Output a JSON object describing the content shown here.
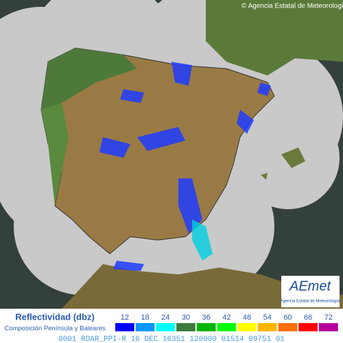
{
  "credit": "© Agencia Estatal de Meteorología",
  "legend": {
    "title": "Reflectividad (dbz)",
    "subtitle": "Composición Península y Baleares",
    "items": [
      {
        "value": 12,
        "color": "#0000fe"
      },
      {
        "value": 18,
        "color": "#0096ff"
      },
      {
        "value": 24,
        "color": "#00ffff"
      },
      {
        "value": 30,
        "color": "#3c7a3c"
      },
      {
        "value": 36,
        "color": "#00b400"
      },
      {
        "value": 42,
        "color": "#00ff00"
      },
      {
        "value": 48,
        "color": "#ffff00"
      },
      {
        "value": 54,
        "color": "#ffb400"
      },
      {
        "value": 60,
        "color": "#ff6e00"
      },
      {
        "value": 66,
        "color": "#ff0000"
      },
      {
        "value": 72,
        "color": "#b4009c"
      }
    ]
  },
  "logo": {
    "name": "AEmet",
    "subtitle": "Agencia Estatal de Meteorología"
  },
  "footer": "0001 RDAR_PPI-R 16 DEC 16351 120000 01514 09751 01"
}
